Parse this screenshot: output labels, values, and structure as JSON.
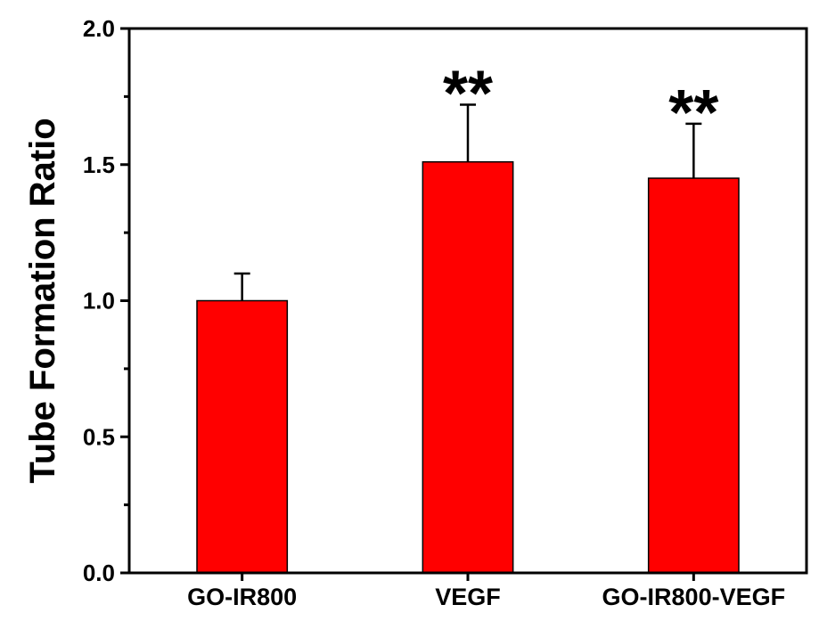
{
  "chart_data": {
    "type": "bar",
    "categories": [
      "GO-IR800",
      "VEGF",
      "GO-IR800-VEGF"
    ],
    "values": [
      1.0,
      1.51,
      1.45
    ],
    "errors": [
      0.1,
      0.21,
      0.2
    ],
    "annotations": [
      "",
      "**",
      "**"
    ],
    "title": "",
    "xlabel": "",
    "ylabel": "Tube Formation Ratio",
    "ylim": [
      0,
      2.0
    ],
    "yticks": [
      "0.0",
      "0.5",
      "1.0",
      "1.5",
      "2.0"
    ],
    "bar_color": "#ff0000",
    "grid": false,
    "legend": "none"
  }
}
